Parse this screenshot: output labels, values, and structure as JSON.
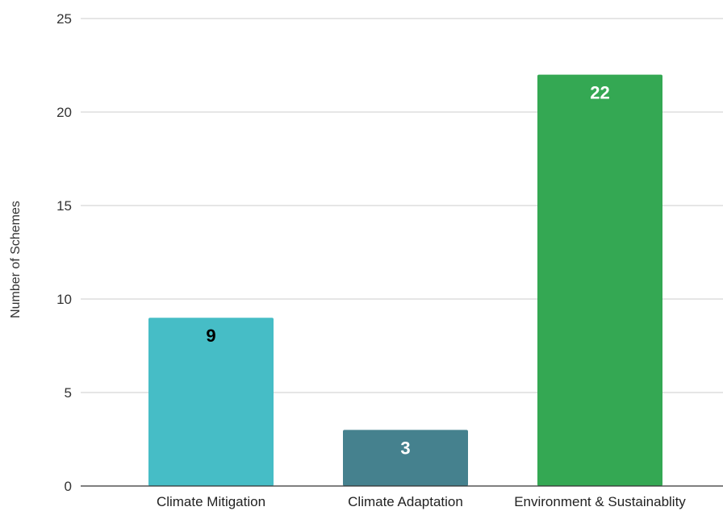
{
  "chart_data": {
    "type": "bar",
    "categories": [
      "Climate Mitigation",
      "Climate Adaptation",
      "Environment & Sustainablity"
    ],
    "values": [
      9,
      3,
      22
    ],
    "data_labels": [
      "9",
      "3",
      "22"
    ],
    "bar_colors": [
      "#46BDC6",
      "#45818E",
      "#34A853"
    ],
    "label_colors": [
      "#000000",
      "#ffffff",
      "#ffffff"
    ],
    "title": "",
    "xlabel": "",
    "ylabel": "Number of Schemes",
    "ylim": [
      0,
      25
    ],
    "yticks": [
      "0",
      "5",
      "10",
      "15",
      "20",
      "25"
    ],
    "grid": true,
    "legend": "none"
  }
}
